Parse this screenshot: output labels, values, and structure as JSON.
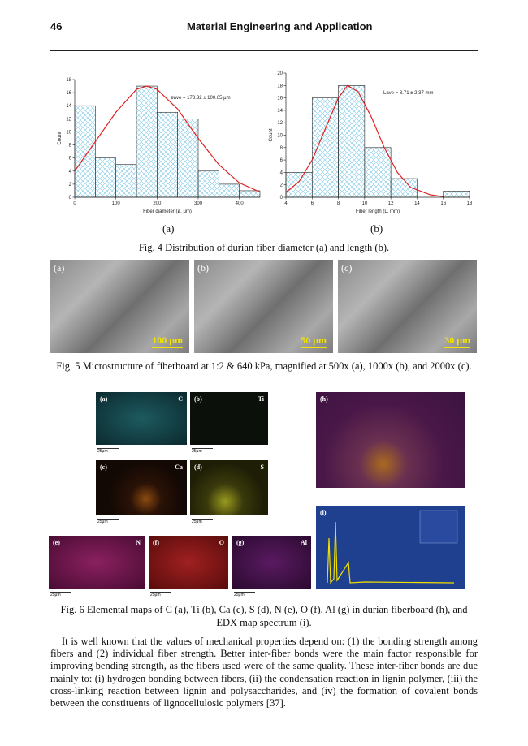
{
  "header": {
    "page": "46",
    "title": "Material Engineering and Application"
  },
  "chart_data": [
    {
      "type": "histogram",
      "bins": [
        0,
        50,
        100,
        150,
        200,
        250,
        300,
        350,
        400,
        450
      ],
      "values": [
        14,
        6,
        5,
        17,
        13,
        12,
        4,
        2,
        1
      ],
      "color": "#7ec8e3",
      "xlim": [
        0,
        450
      ],
      "xticks": [
        0,
        100,
        200,
        300,
        400
      ],
      "ylim": [
        0,
        18
      ],
      "yticks": [
        0,
        2,
        4,
        6,
        8,
        10,
        12,
        14,
        16,
        18
      ],
      "xlabel": "Fiber diameter (ø, μm)",
      "ylabel": "Count",
      "annotation": "øave = 173.32 ± 100.65 μm",
      "fit": {
        "x": [
          0,
          50,
          100,
          150,
          175,
          200,
          250,
          300,
          350,
          400,
          450
        ],
        "values": [
          4,
          8.5,
          13,
          16.5,
          17,
          16.5,
          13.5,
          9,
          5,
          2.2,
          0.8
        ],
        "color": "#e02020"
      }
    },
    {
      "type": "histogram",
      "bins": [
        4,
        6,
        8,
        10,
        12,
        14,
        16,
        18
      ],
      "values": [
        4,
        16,
        18,
        8,
        3,
        0,
        1
      ],
      "color": "#7ec8e3",
      "xlim": [
        4,
        18
      ],
      "xticks": [
        4,
        6,
        8,
        10,
        12,
        14,
        16,
        18
      ],
      "ylim": [
        0,
        20
      ],
      "yticks": [
        0,
        2,
        4,
        6,
        8,
        10,
        12,
        14,
        16,
        18,
        20
      ],
      "xlabel": "Fiber length (L, mm)",
      "ylabel": "Count",
      "annotation": "Lave = 8.71 ± 2.37 mm",
      "fit": {
        "x": [
          4,
          5,
          6,
          7,
          8,
          8.7,
          9.5,
          10.5,
          11.5,
          12.5,
          13.5,
          15,
          16
        ],
        "values": [
          0.8,
          2.5,
          6,
          11,
          16,
          18,
          17,
          13,
          8,
          4,
          1.6,
          0.4,
          0.1
        ],
        "color": "#e02020"
      }
    }
  ],
  "fig4": {
    "panels": [
      "(a)",
      "(b)"
    ],
    "caption": "Fig. 4 Distribution of durian fiber diameter (a) and length (b)."
  },
  "fig5": {
    "panels": [
      {
        "label": "(a)",
        "scale": "100 μm"
      },
      {
        "label": "(b)",
        "scale": "50 μm"
      },
      {
        "label": "(c)",
        "scale": "30 μm"
      }
    ],
    "caption": "Fig. 5 Microstructure of fiberboard at 1:2 & 640 kPa, magnified at 500x (a), 1000x (b), and 2000x (c)."
  },
  "fig6": {
    "maps": [
      {
        "label": "(a)",
        "element": "C",
        "scale": "25μm"
      },
      {
        "label": "(b)",
        "element": "Ti",
        "scale": "25μm"
      },
      {
        "label": "(c)",
        "element": "Ca",
        "scale": "25μm"
      },
      {
        "label": "(d)",
        "element": "S",
        "scale": "25μm"
      },
      {
        "label": "(e)",
        "element": "N",
        "scale": "25μm"
      },
      {
        "label": "(f)",
        "element": "O",
        "scale": "25μm"
      },
      {
        "label": "(g)",
        "element": "Al",
        "scale": "25μm"
      }
    ],
    "h": "(h)",
    "i": "(i)",
    "caption": "Fig. 6 Elemental maps of C (a), Ti (b), Ca (c), S (d), N (e), O (f), Al (g) in durian fiberboard (h), and EDX map spectrum (i)."
  },
  "body": "It is well known that the values of mechanical properties depend on: (1) the bonding strength among fibers and (2) individual fiber strength. Better inter-fiber bonds were the main factor responsible for improving bending strength, as the fibers used were of the same quality. These inter-fiber bonds are due mainly to: (i) hydrogen bonding between fibers, (ii) the condensation reaction in lignin polymer, (iii) the cross-linking reaction between lignin and polysaccharides, and (iv) the formation of covalent bonds between the constituents of lignocellulosic polymers [37]."
}
